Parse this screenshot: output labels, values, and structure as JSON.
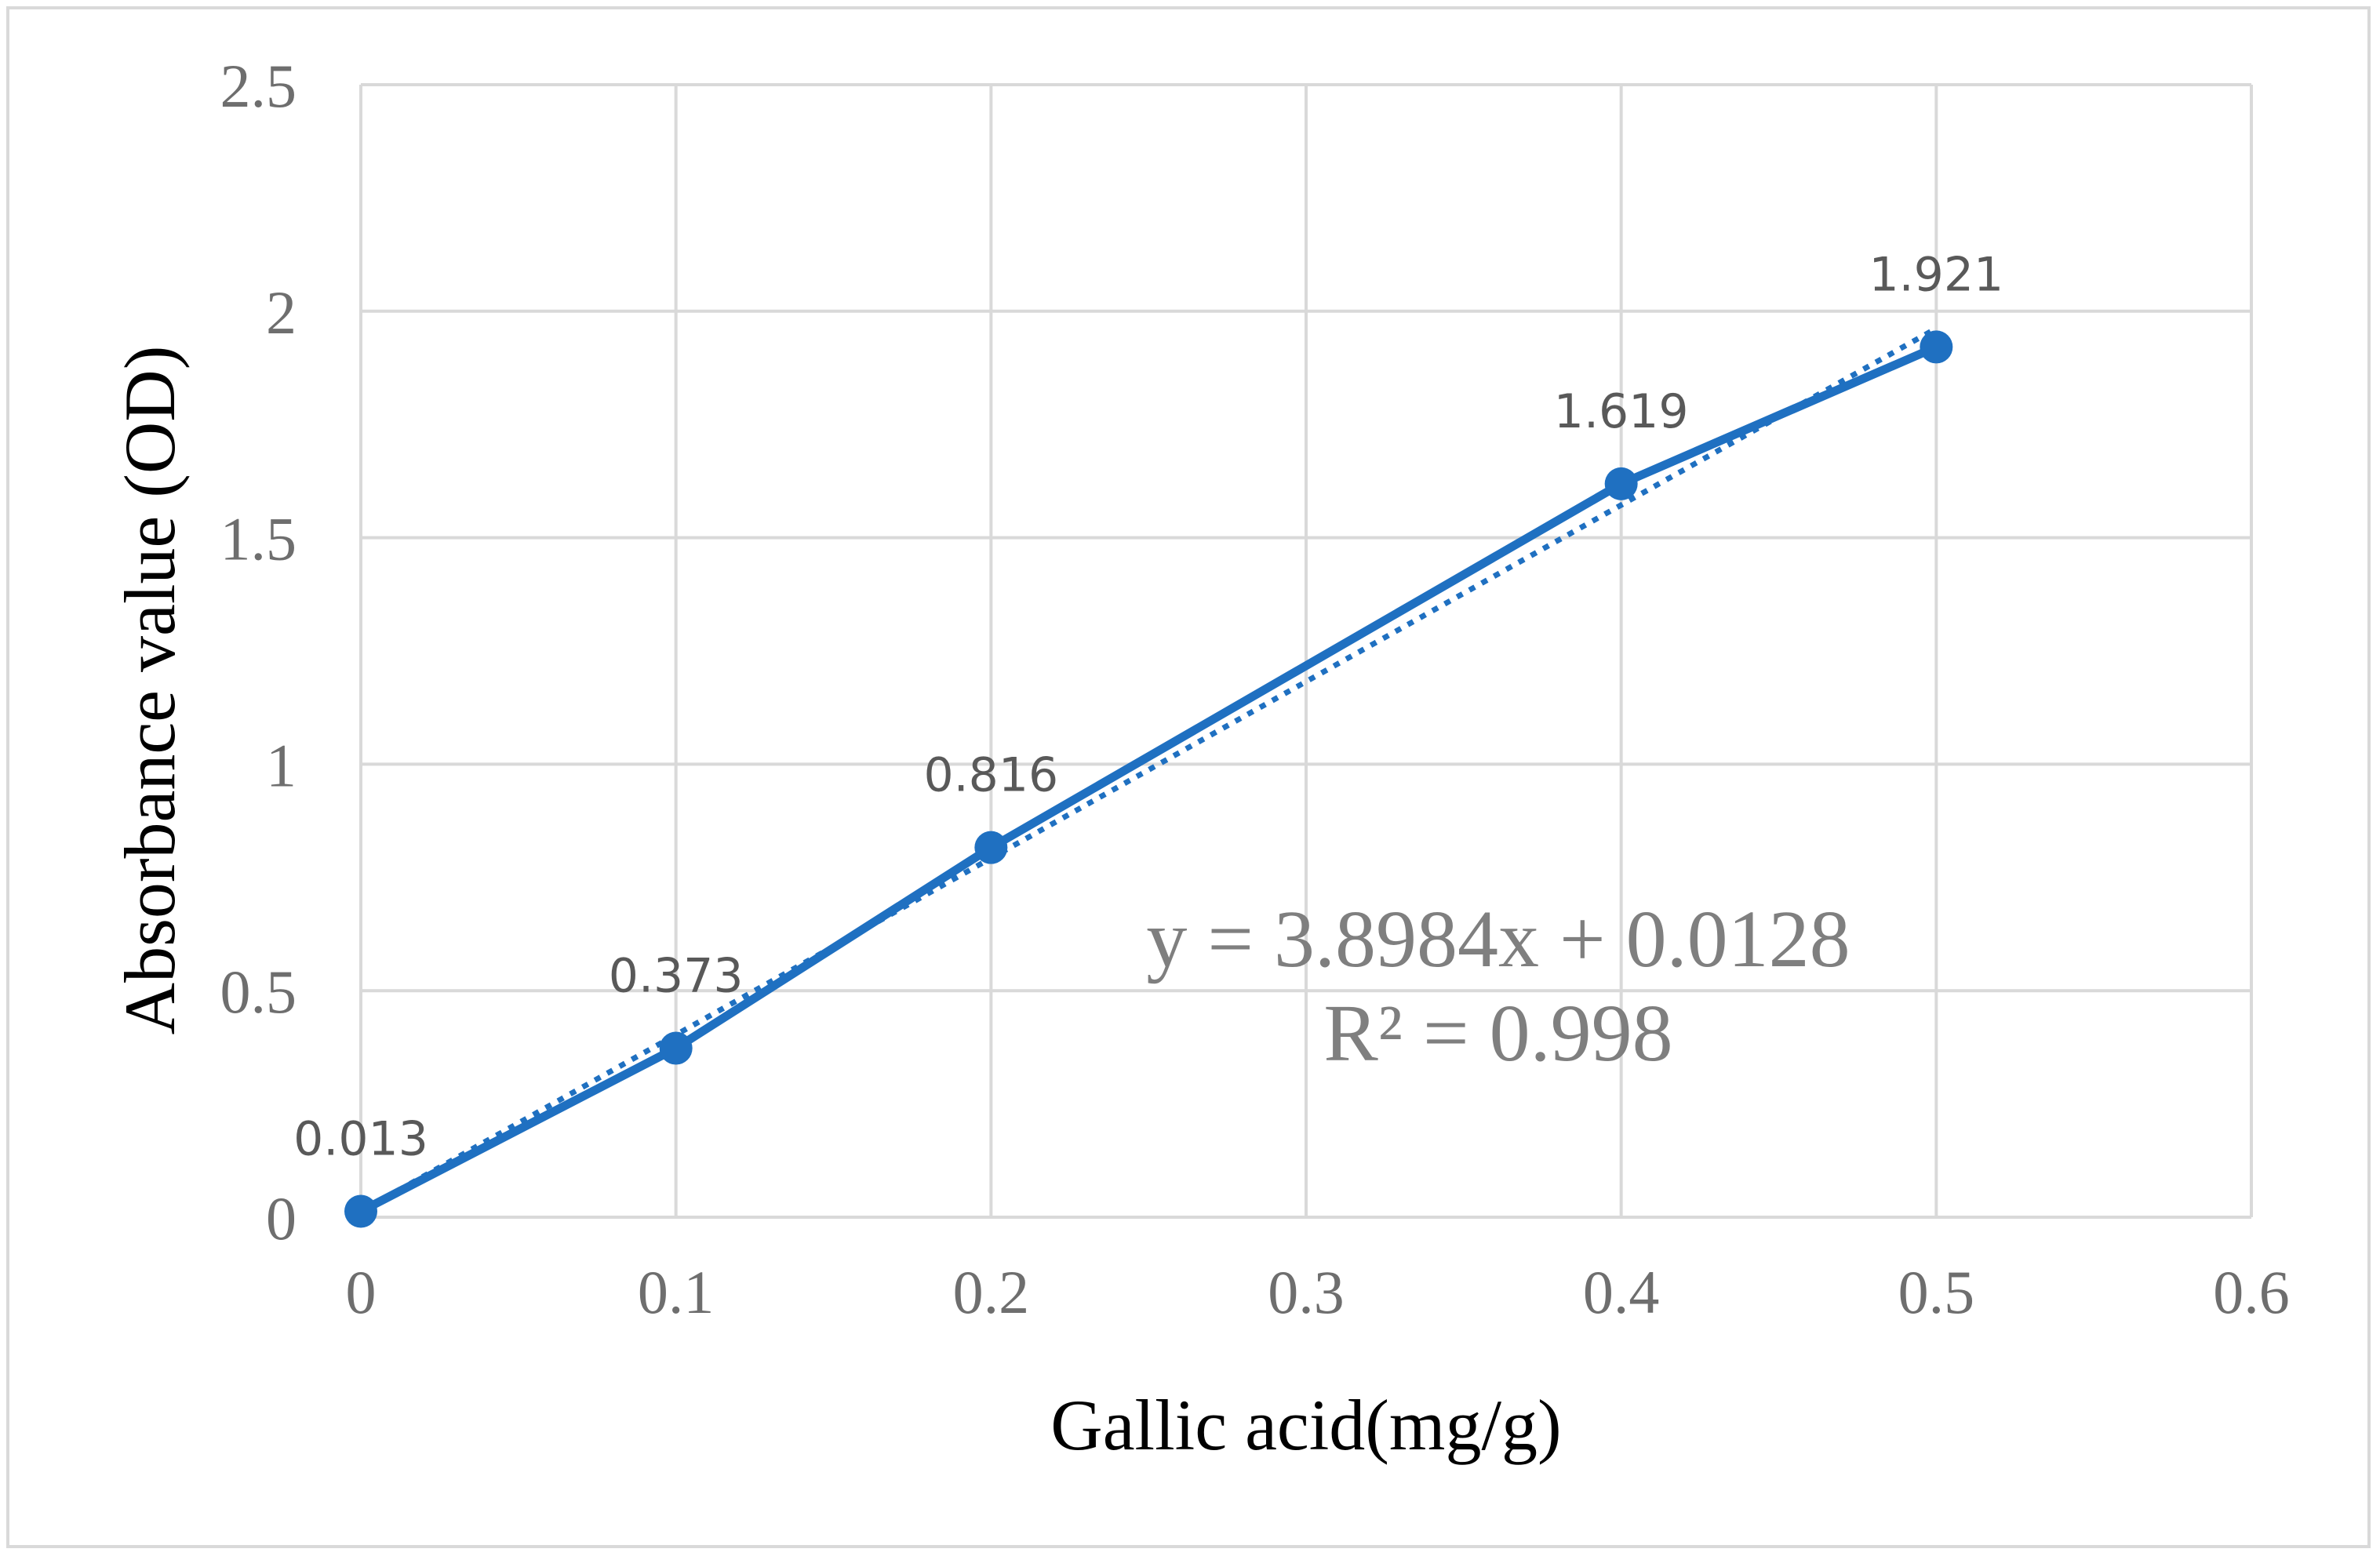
{
  "chart_data": {
    "type": "scatter",
    "xlabel": "Gallic acid(mg/g)",
    "ylabel": "Absorbance value (OD)",
    "xlim": [
      0,
      0.6
    ],
    "ylim": [
      0,
      2.5
    ],
    "x_ticks": [
      "0",
      "0.1",
      "0.2",
      "0.3",
      "0.4",
      "0.5",
      "0.6"
    ],
    "y_ticks": [
      "0",
      "0.5",
      "1",
      "1.5",
      "2",
      "2.5"
    ],
    "grid": true,
    "legend": "none",
    "series": [
      {
        "x": [
          0,
          0.1,
          0.2,
          0.4,
          0.5
        ],
        "y": [
          0.013,
          0.373,
          0.816,
          1.619,
          1.921
        ],
        "labels": [
          "0.013",
          "0.373",
          "0.816",
          "1.619",
          "1.921"
        ],
        "color": "#1f70c1",
        "style": "line-with-markers"
      }
    ],
    "trendline": {
      "type": "linear",
      "slope": 3.8984,
      "intercept": 0.0128,
      "style": "dotted",
      "color": "#1f70c1",
      "equation": "y = 3.8984x + 0.0128",
      "r_squared": "R² = 0.998"
    }
  }
}
